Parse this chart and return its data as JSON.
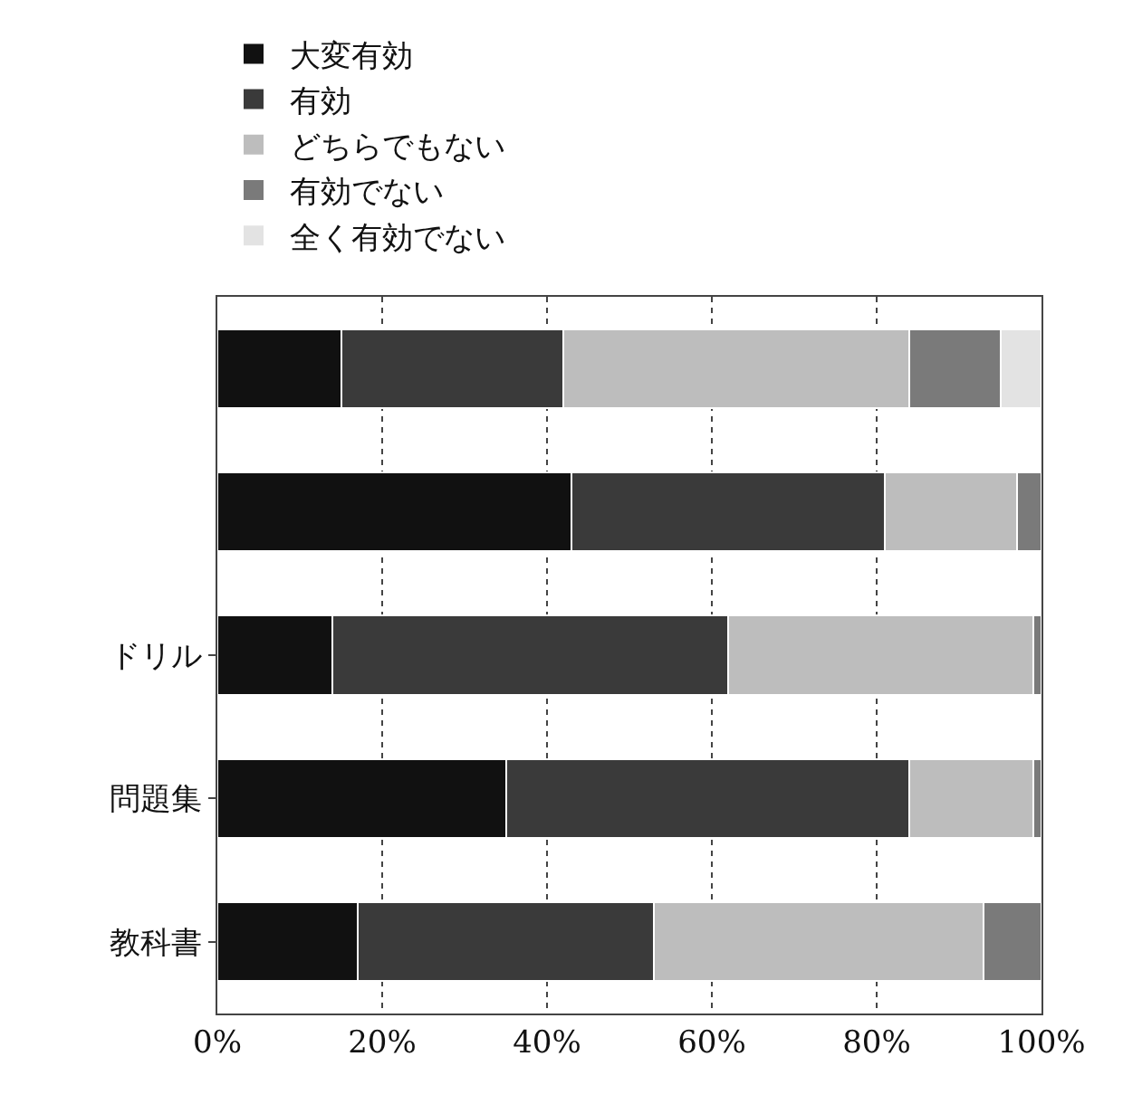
{
  "chart_data": {
    "type": "bar",
    "orientation": "horizontal",
    "stacked": true,
    "categories": [
      null,
      null,
      "ドリル",
      "問題集",
      "教科書"
    ],
    "series": [
      {
        "name": "大変有効",
        "color": "#111111",
        "values": [
          15,
          43,
          14,
          35,
          17
        ]
      },
      {
        "name": "有効",
        "color": "#3a3a3a",
        "values": [
          27,
          38,
          48,
          49,
          36
        ]
      },
      {
        "name": "どちらでもない",
        "color": "#bdbdbd",
        "values": [
          42,
          16,
          37,
          15,
          40
        ]
      },
      {
        "name": "有効でない",
        "color": "#7a7a7a",
        "values": [
          11,
          3,
          1,
          1,
          7
        ]
      },
      {
        "name": "全く有効でない",
        "color": "#e3e3e3",
        "values": [
          5,
          null,
          null,
          null,
          null
        ]
      }
    ],
    "xlim": [
      0,
      100
    ],
    "xticks": [
      {
        "value": 0,
        "label": "0%"
      },
      {
        "value": 20,
        "label": "20%"
      },
      {
        "value": 40,
        "label": "40%"
      },
      {
        "value": 60,
        "label": "60%"
      },
      {
        "value": 80,
        "label": "80%"
      },
      {
        "value": 100,
        "label": "100%"
      }
    ],
    "grid": "x",
    "legend": "top"
  }
}
